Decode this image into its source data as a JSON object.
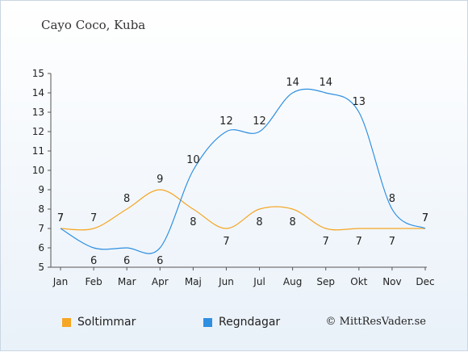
{
  "header": {
    "title": "Cayo Coco, Kuba"
  },
  "legend": [
    {
      "label": "Soltimmar",
      "color": "#f5a623"
    },
    {
      "label": "Regndagar",
      "color": "#2f8fe0"
    }
  ],
  "copyright": "© MittResVader.se",
  "chart_data": {
    "type": "line",
    "categories": [
      "Jan",
      "Feb",
      "Mar",
      "Apr",
      "Maj",
      "Jun",
      "Jul",
      "Aug",
      "Sep",
      "Okt",
      "Nov",
      "Dec"
    ],
    "series": [
      {
        "name": "Soltimmar",
        "color": "#f5a623",
        "values": [
          7,
          7,
          8,
          9,
          8,
          7,
          8,
          8,
          7,
          7,
          7,
          7
        ]
      },
      {
        "name": "Regndagar",
        "color": "#2f8fe0",
        "values": [
          7,
          6,
          6,
          6,
          10,
          12,
          12,
          14,
          14,
          13,
          8,
          7
        ]
      }
    ],
    "yticks": [
      5,
      6,
      7,
      8,
      9,
      10,
      11,
      12,
      13,
      14,
      15
    ],
    "ylim": [
      5,
      15
    ],
    "grid": false,
    "legend_position": "bottom-left"
  }
}
